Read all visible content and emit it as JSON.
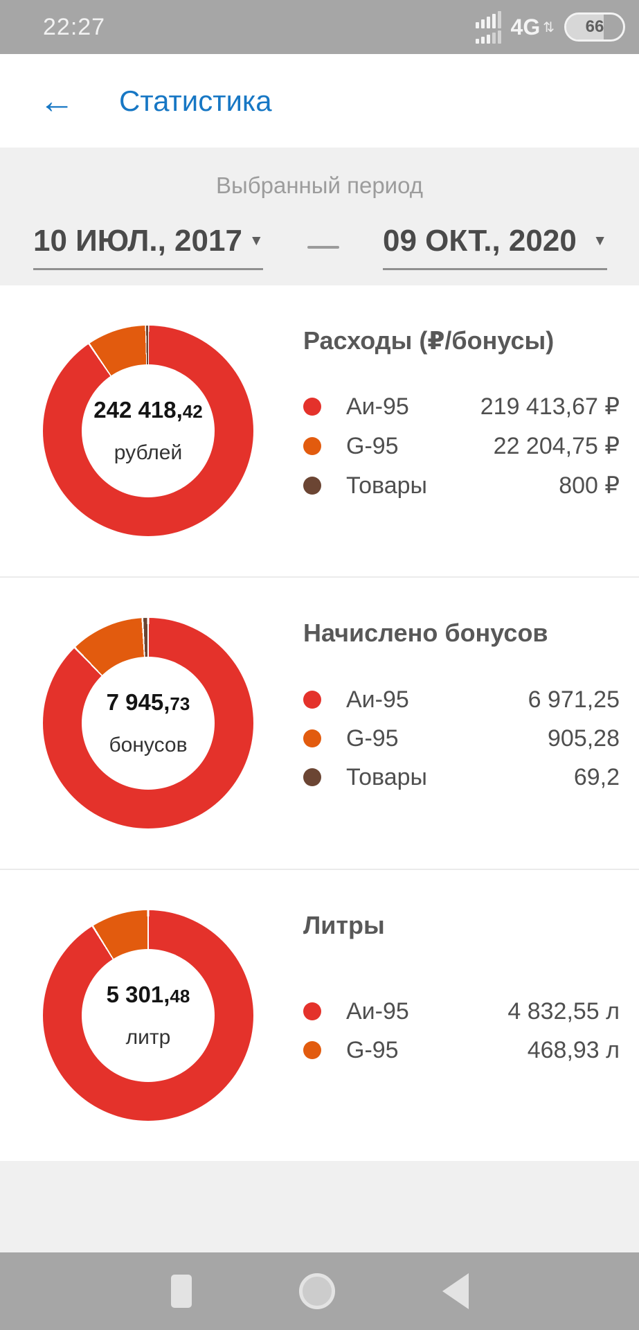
{
  "status_bar": {
    "time": "22:27",
    "network": "4G",
    "battery_percent": "66"
  },
  "header": {
    "back_icon": "←",
    "title": "Статистика"
  },
  "period": {
    "label": "Выбранный период",
    "from": "10 ИЮЛ., 2017",
    "to": "09 ОКТ., 2020",
    "separator": "—",
    "caret_icon": "▼"
  },
  "colors": {
    "accent_blue": "#1777c4",
    "series_red": "#e4322b",
    "series_orange": "#e25b0e",
    "series_brown": "#6b4533",
    "panel_gray": "#f0f0f0",
    "bar_gray": "#a6a6a6"
  },
  "chart_data": [
    {
      "type": "pie",
      "title": "Расходы (₽/бонусы)",
      "center": {
        "main": "242 418,",
        "decimals": "42",
        "unit": "рублей"
      },
      "legend_position": "right",
      "series": [
        {
          "name": "Аи-95",
          "value": 219413.67,
          "display": "219 413,67 ₽",
          "color": "#e4322b"
        },
        {
          "name": "G-95",
          "value": 22204.75,
          "display": "22 204,75 ₽",
          "color": "#e25b0e"
        },
        {
          "name": "Товары",
          "value": 800,
          "display": "800 ₽",
          "color": "#6b4533"
        }
      ]
    },
    {
      "type": "pie",
      "title": "Начислено бонусов",
      "center": {
        "main": "7 945,",
        "decimals": "73",
        "unit": "бонусов"
      },
      "legend_position": "right",
      "series": [
        {
          "name": "Аи-95",
          "value": 6971.25,
          "display": "6 971,25",
          "color": "#e4322b"
        },
        {
          "name": "G-95",
          "value": 905.28,
          "display": "905,28",
          "color": "#e25b0e"
        },
        {
          "name": "Товары",
          "value": 69.2,
          "display": "69,2",
          "color": "#6b4533"
        }
      ]
    },
    {
      "type": "pie",
      "title": "Литры",
      "center": {
        "main": "5 301,",
        "decimals": "48",
        "unit": "литр"
      },
      "legend_position": "right",
      "series": [
        {
          "name": "Аи-95",
          "value": 4832.55,
          "display": "4 832,55 л",
          "color": "#e4322b"
        },
        {
          "name": "G-95",
          "value": 468.93,
          "display": "468,93 л",
          "color": "#e25b0e"
        }
      ]
    }
  ]
}
